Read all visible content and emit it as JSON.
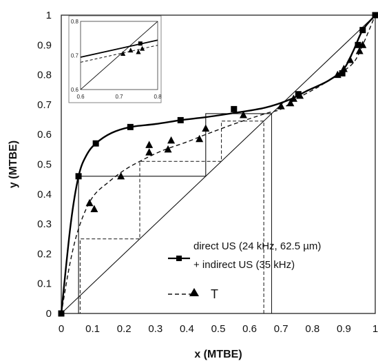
{
  "chart_data": {
    "type": "line",
    "title": "",
    "xlabel": "x (MTBE)",
    "ylabel": "y (MTBE)",
    "xlim": [
      0,
      1
    ],
    "ylim": [
      0,
      1
    ],
    "xticks": [
      "0",
      "0.1",
      "0.2",
      "0.3",
      "0.4",
      "0.5",
      "0.6",
      "0.7",
      "0.8",
      "0.9",
      "1"
    ],
    "yticks": [
      "0",
      "0.1",
      "0.2",
      "0.3",
      "0.4",
      "0.5",
      "0.6",
      "0.7",
      "0.8",
      "0.9",
      "1"
    ],
    "grid": false,
    "legend_position": "bottom-right",
    "series": [
      {
        "name": "direct US (24 kHz, 62.5 µm) + indirect US (35 kHz)",
        "style": "solid-square",
        "color": "#000000",
        "curve": [
          [
            0,
            0
          ],
          [
            0.03,
            0.3
          ],
          [
            0.055,
            0.46
          ],
          [
            0.08,
            0.53
          ],
          [
            0.11,
            0.57
          ],
          [
            0.16,
            0.605
          ],
          [
            0.22,
            0.625
          ],
          [
            0.3,
            0.635
          ],
          [
            0.38,
            0.648
          ],
          [
            0.46,
            0.658
          ],
          [
            0.55,
            0.672
          ],
          [
            0.65,
            0.69
          ],
          [
            0.73,
            0.718
          ],
          [
            0.78,
            0.745
          ],
          [
            0.85,
            0.78
          ],
          [
            0.9,
            0.82
          ],
          [
            0.93,
            0.88
          ],
          [
            0.96,
            0.95
          ],
          [
            1,
            1
          ]
        ],
        "points": [
          [
            0,
            0
          ],
          [
            0.055,
            0.46
          ],
          [
            0.11,
            0.57
          ],
          [
            0.22,
            0.625
          ],
          [
            0.38,
            0.648
          ],
          [
            0.55,
            0.685
          ],
          [
            0.755,
            0.735
          ],
          [
            0.895,
            0.805
          ],
          [
            0.945,
            0.9
          ],
          [
            0.96,
            0.95
          ],
          [
            1,
            1
          ]
        ]
      },
      {
        "name": "T",
        "style": "dashed-triangle",
        "color": "#000000",
        "curve": [
          [
            0,
            0
          ],
          [
            0.03,
            0.18
          ],
          [
            0.06,
            0.3
          ],
          [
            0.1,
            0.39
          ],
          [
            0.15,
            0.44
          ],
          [
            0.2,
            0.48
          ],
          [
            0.25,
            0.51
          ],
          [
            0.32,
            0.545
          ],
          [
            0.4,
            0.575
          ],
          [
            0.46,
            0.6
          ],
          [
            0.55,
            0.635
          ],
          [
            0.65,
            0.67
          ],
          [
            0.7,
            0.685
          ],
          [
            0.75,
            0.72
          ],
          [
            0.82,
            0.76
          ],
          [
            0.88,
            0.8
          ],
          [
            0.93,
            0.84
          ],
          [
            0.96,
            0.9
          ],
          [
            1,
            1
          ]
        ],
        "points": [
          [
            0.09,
            0.37
          ],
          [
            0.105,
            0.35
          ],
          [
            0.19,
            0.46
          ],
          [
            0.28,
            0.54
          ],
          [
            0.28,
            0.565
          ],
          [
            0.34,
            0.55
          ],
          [
            0.35,
            0.58
          ],
          [
            0.44,
            0.585
          ],
          [
            0.46,
            0.62
          ],
          [
            0.58,
            0.665
          ],
          [
            0.7,
            0.695
          ],
          [
            0.73,
            0.705
          ],
          [
            0.74,
            0.72
          ],
          [
            0.76,
            0.73
          ],
          [
            0.88,
            0.8
          ],
          [
            0.9,
            0.82
          ],
          [
            0.92,
            0.85
          ],
          [
            0.95,
            0.88
          ],
          [
            0.96,
            0.9
          ]
        ]
      }
    ],
    "diagonal": [
      [
        0,
        0
      ],
      [
        1,
        1
      ]
    ],
    "stages_solid": [
      [
        0.67,
        0.67
      ],
      [
        0.67,
        0.67
      ],
      [
        0.46,
        0.67
      ],
      [
        0.46,
        0.46
      ],
      [
        0.055,
        0.46
      ],
      [
        0.055,
        0
      ]
    ],
    "stages_dashed": [
      [
        0.645,
        0.645
      ],
      [
        0.645,
        0.645
      ],
      [
        0.51,
        0.645
      ],
      [
        0.51,
        0.51
      ],
      [
        0.25,
        0.51
      ],
      [
        0.25,
        0.25
      ],
      [
        0.06,
        0.25
      ],
      [
        0.06,
        0
      ]
    ],
    "vlines": [
      [
        0.67,
        0,
        0.67
      ],
      [
        0.645,
        0,
        0.645
      ]
    ],
    "inset": {
      "xlim": [
        0.6,
        0.8
      ],
      "ylim": [
        0.6,
        0.8
      ],
      "xticks": [
        "0.6",
        "0.7",
        "0.8"
      ],
      "yticks": [
        "0.6",
        "0.7",
        "0.8"
      ],
      "solid_line": [
        [
          0.6,
          0.695
        ],
        [
          0.8,
          0.745
        ]
      ],
      "dashed_line": [
        [
          0.6,
          0.68
        ],
        [
          0.8,
          0.73
        ]
      ],
      "points": [
        [
          0.71,
          0.705
        ],
        [
          0.73,
          0.715
        ],
        [
          0.75,
          0.71
        ],
        [
          0.76,
          0.72
        ]
      ],
      "squares": [
        [
          0.755,
          0.735
        ]
      ]
    }
  }
}
